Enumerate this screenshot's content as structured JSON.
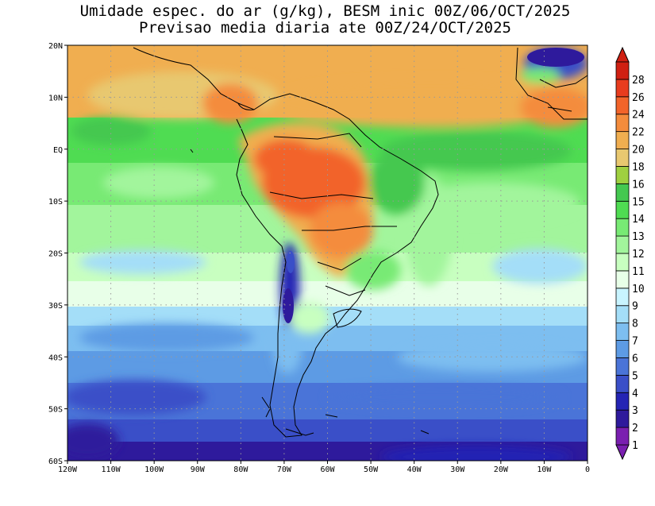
{
  "title_line1": "Umidade espec. do ar (g/kg), BESM inic 00Z/06/OCT/2025",
  "title_line2": "Previsao media diaria ate 00Z/24/OCT/2025",
  "axes": {
    "lat_ticks": [
      "20N",
      "10N",
      "EQ",
      "10S",
      "20S",
      "30S",
      "40S",
      "50S",
      "60S"
    ],
    "lat_values": [
      20,
      10,
      0,
      -10,
      -20,
      -30,
      -40,
      -50,
      -60
    ],
    "lon_ticks": [
      "120W",
      "110W",
      "100W",
      "90W",
      "80W",
      "70W",
      "60W",
      "50W",
      "40W",
      "30W",
      "20W",
      "10W",
      "0"
    ],
    "lon_values": [
      -120,
      -110,
      -100,
      -90,
      -80,
      -70,
      -60,
      -50,
      -40,
      -30,
      -20,
      -10,
      0
    ],
    "lon_range": [
      -120,
      0
    ],
    "lat_range": [
      -60,
      20
    ],
    "grid": true,
    "grid_style": "dotted"
  },
  "colorbar": {
    "labels": [
      "1",
      "2",
      "3",
      "4",
      "5",
      "6",
      "7",
      "8",
      "9",
      "10",
      "11",
      "12",
      "13",
      "14",
      "15",
      "16",
      "18",
      "20",
      "22",
      "24",
      "26",
      "28"
    ],
    "colors": [
      "#7a1fb0",
      "#2e1a9c",
      "#2424b4",
      "#3a4fc8",
      "#4a74d8",
      "#5d9be4",
      "#7dbef0",
      "#a4def8",
      "#c8f4ff",
      "#e8ffe8",
      "#c8ffc0",
      "#a2f59c",
      "#78ea74",
      "#4fdc52",
      "#44c850",
      "#9fd040",
      "#e8c870",
      "#f0ae50",
      "#f48c3c",
      "#f2642a",
      "#e83c1e",
      "#d02012"
    ],
    "under_color": "#7a1fb0",
    "over_color": "#d02012",
    "units": "g/kg"
  },
  "map_colors": {
    "very_humid": "#f2642a",
    "humid": "#f0ae50",
    "green": "#4fdc52",
    "light_green": "#a2f59c",
    "pale": "#c8f4ff",
    "light_blue": "#a4def8",
    "blue": "#5d9be4",
    "mid_blue": "#4a74d8",
    "dark_blue": "#3a4fc8",
    "deep": "#2424b4"
  }
}
